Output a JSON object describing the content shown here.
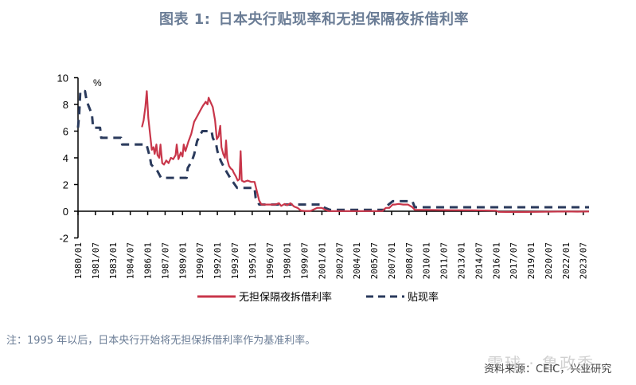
{
  "title": {
    "prefix": "图表 1:",
    "text": "日本央行贴现率和无担保隔夜拆借利率"
  },
  "note": "注：1995 年以后，日本央行开始将无担保拆借利率作为基准利率。",
  "source": "资料来源：CEIC，兴业研究",
  "watermark": "雪球 · 鲁政委",
  "colors": {
    "title": "#6b7d96",
    "call_rate": "#c8364a",
    "discount_rate": "#2a3a5c"
  },
  "chart_data": {
    "type": "line",
    "title": "日本央行贴现率和无担保隔夜拆借利率",
    "xlabel": "",
    "ylabel": "%",
    "ylim": [
      -2,
      10
    ],
    "yticks": [
      -2,
      0,
      2,
      4,
      6,
      8,
      10
    ],
    "grid": false,
    "legend_position": "bottom",
    "x_tick_labels": [
      "1980/01",
      "1981/07",
      "1983/01",
      "1984/07",
      "1986/01",
      "1987/07",
      "1989/01",
      "1990/07",
      "1992/01",
      "1993/07",
      "1995/01",
      "1996/07",
      "1998/01",
      "1999/07",
      "2001/01",
      "2002/07",
      "2004/01",
      "2005/07",
      "2007/01",
      "2008/07",
      "2010/01",
      "2011/07",
      "2013/01",
      "2014/07",
      "2016/01",
      "2017/07",
      "2019/01",
      "2020/07",
      "2022/01",
      "2023/07"
    ],
    "series": [
      {
        "name": "无担保隔夜拆借利率",
        "style": "solid",
        "points": [
          [
            1985.5,
            6.3
          ],
          [
            1985.65,
            6.8
          ],
          [
            1985.8,
            7.8
          ],
          [
            1985.92,
            9.0
          ],
          [
            1986.05,
            7.0
          ],
          [
            1986.2,
            5.8
          ],
          [
            1986.35,
            4.6
          ],
          [
            1986.5,
            4.8
          ],
          [
            1986.6,
            4.3
          ],
          [
            1986.75,
            5.0
          ],
          [
            1986.85,
            4.2
          ],
          [
            1987.0,
            4.0
          ],
          [
            1987.1,
            5.0
          ],
          [
            1987.25,
            3.6
          ],
          [
            1987.4,
            3.5
          ],
          [
            1987.6,
            3.8
          ],
          [
            1987.8,
            3.6
          ],
          [
            1988.0,
            4.0
          ],
          [
            1988.2,
            3.9
          ],
          [
            1988.4,
            4.2
          ],
          [
            1988.5,
            5.0
          ],
          [
            1988.65,
            3.9
          ],
          [
            1988.85,
            4.4
          ],
          [
            1989.0,
            4.1
          ],
          [
            1989.1,
            5.0
          ],
          [
            1989.25,
            4.5
          ],
          [
            1989.5,
            5.2
          ],
          [
            1989.75,
            5.8
          ],
          [
            1990.0,
            6.7
          ],
          [
            1990.25,
            7.1
          ],
          [
            1990.5,
            7.5
          ],
          [
            1990.75,
            7.9
          ],
          [
            1991.0,
            8.2
          ],
          [
            1991.15,
            8.0
          ],
          [
            1991.25,
            8.5
          ],
          [
            1991.4,
            8.2
          ],
          [
            1991.6,
            7.8
          ],
          [
            1991.8,
            6.8
          ],
          [
            1991.95,
            5.4
          ],
          [
            1992.1,
            5.6
          ],
          [
            1992.25,
            6.4
          ],
          [
            1992.35,
            4.8
          ],
          [
            1992.5,
            4.3
          ],
          [
            1992.65,
            4.0
          ],
          [
            1992.75,
            5.3
          ],
          [
            1992.85,
            3.9
          ],
          [
            1993.0,
            3.4
          ],
          [
            1993.15,
            3.2
          ],
          [
            1993.3,
            3.1
          ],
          [
            1993.4,
            2.9
          ],
          [
            1993.6,
            2.6
          ],
          [
            1993.75,
            2.3
          ],
          [
            1993.9,
            2.4
          ],
          [
            1994.0,
            4.5
          ],
          [
            1994.1,
            2.3
          ],
          [
            1994.3,
            2.2
          ],
          [
            1994.6,
            2.3
          ],
          [
            1994.9,
            2.2
          ],
          [
            1995.2,
            2.2
          ],
          [
            1995.4,
            1.5
          ],
          [
            1995.6,
            0.8
          ],
          [
            1995.8,
            0.5
          ],
          [
            1996.2,
            0.5
          ],
          [
            1997.0,
            0.5
          ],
          [
            1997.3,
            0.6
          ],
          [
            1997.5,
            0.4
          ],
          [
            1997.8,
            0.55
          ],
          [
            1998.0,
            0.45
          ],
          [
            1998.3,
            0.6
          ],
          [
            1998.6,
            0.35
          ],
          [
            1998.9,
            0.25
          ],
          [
            1999.2,
            0.05
          ],
          [
            1999.5,
            0.02
          ],
          [
            2000.0,
            0.02
          ],
          [
            2000.6,
            0.25
          ],
          [
            2001.0,
            0.25
          ],
          [
            2001.3,
            0.1
          ],
          [
            2001.6,
            0.01
          ],
          [
            2003.0,
            0.01
          ],
          [
            2005.0,
            0.01
          ],
          [
            2006.2,
            0.01
          ],
          [
            2006.5,
            0.25
          ],
          [
            2006.8,
            0.25
          ],
          [
            2007.1,
            0.5
          ],
          [
            2007.3,
            0.5
          ],
          [
            2007.6,
            0.55
          ],
          [
            2008.0,
            0.5
          ],
          [
            2008.4,
            0.5
          ],
          [
            2008.8,
            0.3
          ],
          [
            2009.0,
            0.1
          ],
          [
            2010.0,
            0.1
          ],
          [
            2012.0,
            0.08
          ],
          [
            2014.0,
            0.07
          ],
          [
            2016.0,
            0.04
          ],
          [
            2016.2,
            -0.05
          ],
          [
            2018.0,
            -0.06
          ],
          [
            2020.0,
            -0.04
          ],
          [
            2022.0,
            -0.02
          ],
          [
            2023.0,
            -0.03
          ],
          [
            2024.0,
            -0.02
          ]
        ]
      },
      {
        "name": "贴现率",
        "style": "dashed",
        "points": [
          [
            1980.0,
            6.25
          ],
          [
            1980.1,
            7.25
          ],
          [
            1980.2,
            9.0
          ],
          [
            1980.6,
            9.0
          ],
          [
            1980.75,
            8.25
          ],
          [
            1981.2,
            7.25
          ],
          [
            1981.3,
            6.25
          ],
          [
            1981.9,
            6.25
          ],
          [
            1982.0,
            5.5
          ],
          [
            1983.7,
            5.5
          ],
          [
            1983.8,
            5.0
          ],
          [
            1985.9,
            5.0
          ],
          [
            1986.05,
            4.5
          ],
          [
            1986.2,
            4.0
          ],
          [
            1986.3,
            3.5
          ],
          [
            1986.85,
            3.0
          ],
          [
            1987.15,
            2.5
          ],
          [
            1989.35,
            2.5
          ],
          [
            1989.45,
            3.25
          ],
          [
            1989.8,
            3.75
          ],
          [
            1990.0,
            4.25
          ],
          [
            1990.25,
            5.25
          ],
          [
            1990.7,
            6.0
          ],
          [
            1991.5,
            6.0
          ],
          [
            1991.6,
            5.5
          ],
          [
            1991.9,
            5.0
          ],
          [
            1992.0,
            4.5
          ],
          [
            1992.3,
            3.75
          ],
          [
            1992.6,
            3.25
          ],
          [
            1993.1,
            2.5
          ],
          [
            1993.7,
            1.75
          ],
          [
            1995.2,
            1.75
          ],
          [
            1995.3,
            1.0
          ],
          [
            1995.6,
            0.5
          ],
          [
            2001.0,
            0.5
          ],
          [
            2001.1,
            0.35
          ],
          [
            2001.25,
            0.25
          ],
          [
            2001.7,
            0.1
          ],
          [
            2006.5,
            0.1
          ],
          [
            2006.6,
            0.4
          ],
          [
            2007.1,
            0.75
          ],
          [
            2008.8,
            0.75
          ],
          [
            2008.9,
            0.5
          ],
          [
            2009.0,
            0.3
          ],
          [
            2024.0,
            0.3
          ]
        ]
      }
    ]
  }
}
